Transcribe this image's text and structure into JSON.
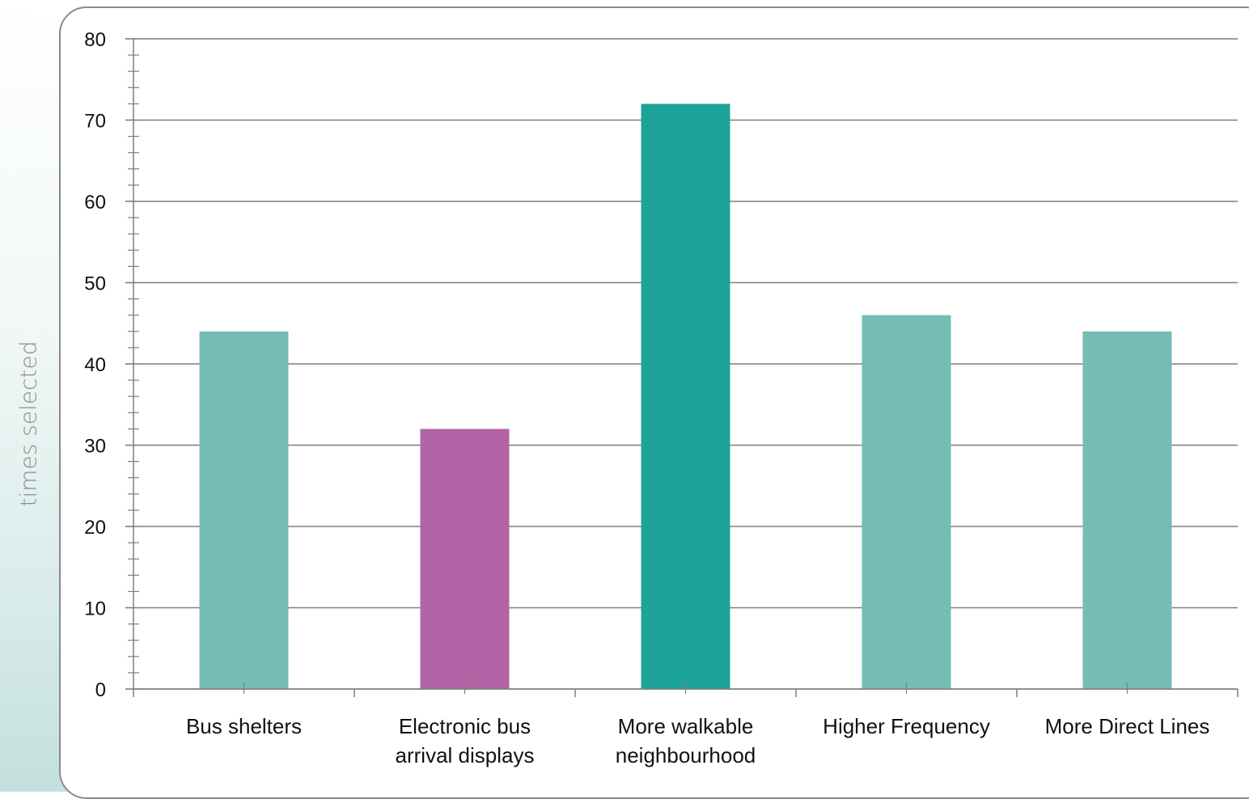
{
  "chart_data": {
    "type": "bar",
    "categories": [
      [
        "Bus shelters"
      ],
      [
        "Electronic bus",
        "arrival displays"
      ],
      [
        "More walkable",
        "neighbourhood"
      ],
      [
        "Higher Frequency"
      ],
      [
        "More Direct Lines"
      ]
    ],
    "values": [
      44,
      32,
      72,
      46,
      44
    ],
    "bar_colors": [
      "#76bcb6",
      "#b264a6",
      "#1ea39a",
      "#76bcb6",
      "#76bcb6"
    ],
    "title": "",
    "xlabel": "",
    "ylabel": "times selected",
    "ylim": [
      0,
      80
    ],
    "ytick_step": 10,
    "yticks_labels": [
      "0",
      "10",
      "20",
      "30",
      "40",
      "50",
      "60",
      "70",
      "80"
    ],
    "grid": true,
    "legend": "none"
  }
}
